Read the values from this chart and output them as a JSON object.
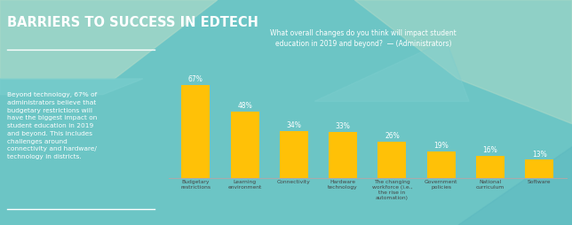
{
  "title": "BARRIERS TO SUCCESS IN EDTECH",
  "chart_question": "What overall changes do you think will impact student\neducation in 2019 and beyond?  — (Administrators)",
  "left_text": "Beyond technology, 67% of\nadministrators believe that\nbudgetary restrictions will\nhave the biggest impact on\nstudent education in 2019\nand beyond. This includes\nchallenges around\nconnectivity and hardware/\ntechnology in districts.",
  "categories": [
    "Budgetary\nrestrictions",
    "Learning\nenvironment",
    "Connectivity",
    "Hardware\ntechnology",
    "The changing\nworkforce (i.e.,\nthe rise in\nautomation)",
    "Government\npolicies",
    "National\ncurriculum",
    "Software"
  ],
  "values": [
    67,
    48,
    34,
    33,
    26,
    19,
    16,
    13
  ],
  "bar_color": "#FFC107",
  "bg_main": "#6CC5C5",
  "bg_mint": "#A8D8C8",
  "bg_light_teal": "#8DD4D4",
  "title_color": "#FFFFFF",
  "text_color": "#FFFFFF",
  "question_color": "#FFFFFF",
  "label_color": "#6BBABA",
  "tick_color": "#555555",
  "ylim": [
    0,
    75
  ]
}
